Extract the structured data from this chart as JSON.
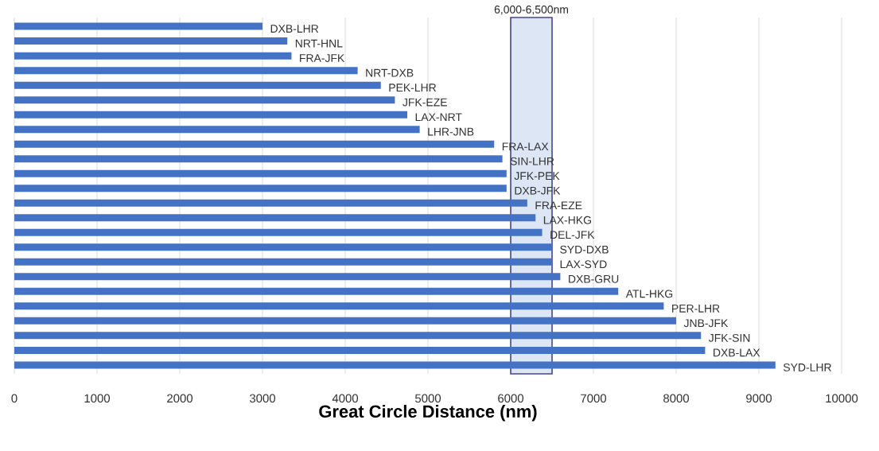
{
  "chart_data": {
    "type": "bar",
    "orientation": "horizontal",
    "xlabel": "Great Circle Distance (nm)",
    "categories": [
      "DXB-LHR",
      "NRT-HNL",
      "FRA-JFK",
      "NRT-DXB",
      "PEK-LHR",
      "JFK-EZE",
      "LAX-NRT",
      "LHR-JNB",
      "FRA-LAX",
      "SIN-LHR",
      "JFK-PEK",
      "DXB-JFK",
      "FRA-EZE",
      "LAX-HKG",
      "DEL-JFK",
      "SYD-DXB",
      "LAX-SYD",
      "DXB-GRU",
      "ATL-HKG",
      "PER-LHR",
      "JNB-JFK",
      "JFK-SIN",
      "DXB-LAX",
      "SYD-LHR"
    ],
    "values": [
      3000,
      3300,
      3350,
      4150,
      4430,
      4600,
      4750,
      4900,
      5800,
      5900,
      5950,
      5950,
      6200,
      6300,
      6380,
      6500,
      6500,
      6600,
      7300,
      7850,
      8000,
      8300,
      8350,
      9200
    ],
    "color": "#4472c4",
    "xlim": [
      0,
      10000
    ],
    "xticks": [
      0,
      1000,
      2000,
      3000,
      4000,
      5000,
      6000,
      7000,
      8000,
      9000,
      10000
    ],
    "grid": "x",
    "bands": [
      {
        "axis": "x",
        "from": 6000,
        "to": 6500,
        "label": "6,000-6,500nm",
        "color": "#dce6f5"
      }
    ]
  }
}
